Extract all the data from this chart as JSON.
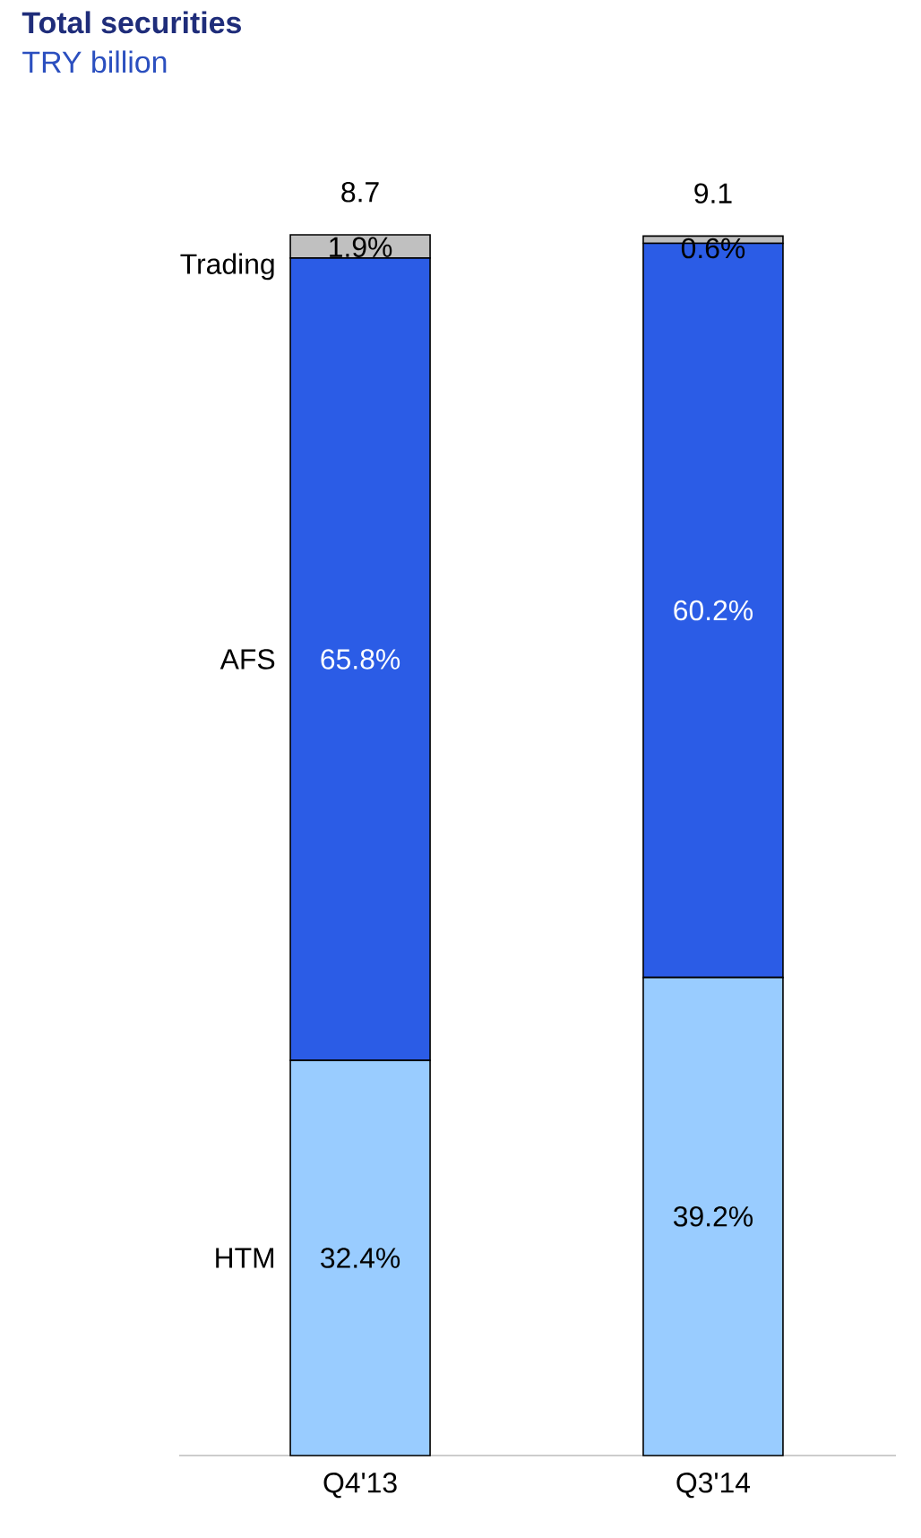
{
  "chart_data": {
    "type": "bar",
    "stacked": true,
    "title": "Total securities",
    "subtitle": "TRY billion",
    "categories": [
      "Q4'13",
      "Q3'14"
    ],
    "series": [
      {
        "name": "HTM",
        "color": "#99ccff",
        "values": [
          32.4,
          39.2
        ],
        "value_labels": [
          "32.4%",
          "39.2%"
        ]
      },
      {
        "name": "AFS",
        "color": "#2b5ce6",
        "values": [
          65.8,
          60.2
        ],
        "value_labels": [
          "65.8%",
          "60.2%"
        ]
      },
      {
        "name": "Trading",
        "color": "#c0c0c0",
        "values": [
          1.9,
          0.6
        ],
        "value_labels": [
          "1.9%",
          "0.6%"
        ]
      }
    ],
    "annotations": [
      "8.7",
      "9.1"
    ]
  }
}
